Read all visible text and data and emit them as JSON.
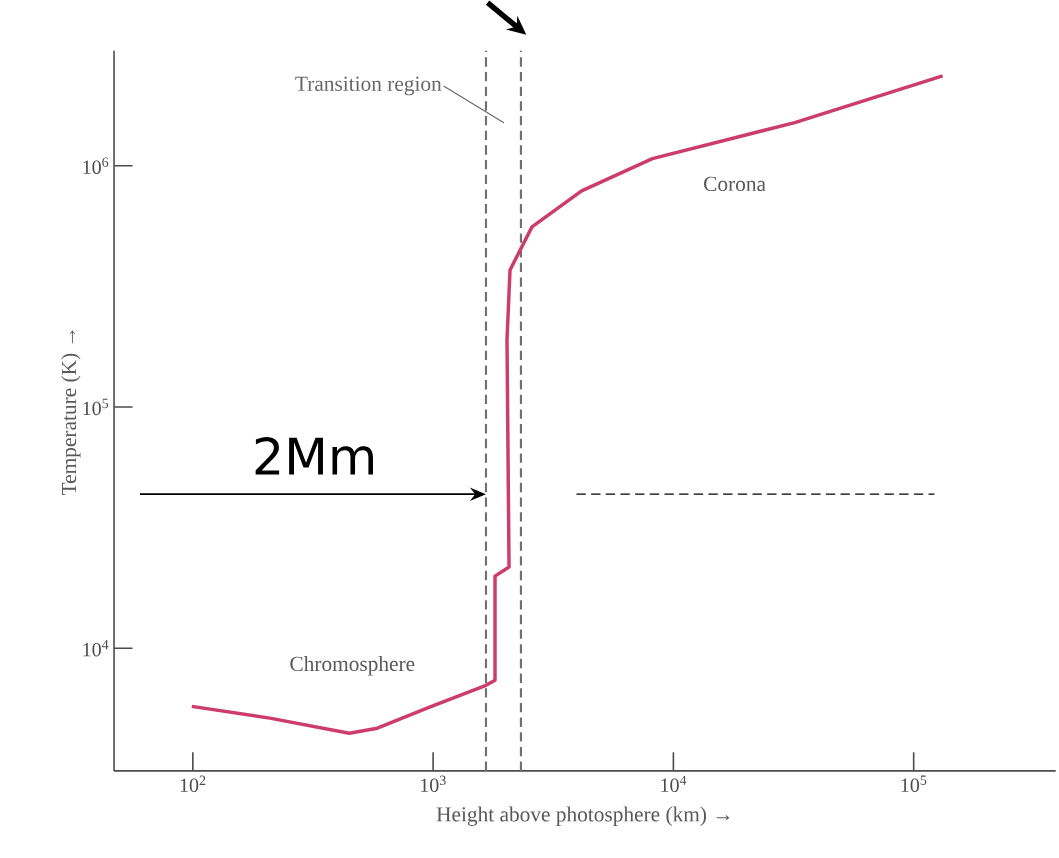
{
  "chart_data": {
    "type": "line",
    "xlabel": "Height above photosphere (km) →",
    "ylabel": "Temperature (K) →",
    "log": "xy",
    "xlim": [
      47,
      390000
    ],
    "ylim": [
      3100,
      3000000
    ],
    "xticks": [
      {
        "value": 100,
        "label": "10$^{2}$"
      },
      {
        "value": 1000,
        "label": "10$^{3}$"
      },
      {
        "value": 10000,
        "label": "10$^{4}$"
      },
      {
        "value": 100000,
        "label": "10$^{5}$"
      }
    ],
    "yticks": [
      {
        "value": 10000,
        "label": "10$^{4}$"
      },
      {
        "value": 100000,
        "label": "10$^{5}$"
      },
      {
        "value": 1000000,
        "label": "10$^{6}$"
      }
    ],
    "series": [
      {
        "color": "#cc3d6b",
        "line_style": "solid",
        "x": [
          99,
          209,
          448,
          586,
          961,
          1660,
          1810,
          1810,
          2070,
          2030,
          2090,
          2580,
          4150,
          8180,
          32000,
          132000
        ],
        "values": [
          5740,
          5130,
          4440,
          4660,
          5690,
          7020,
          7360,
          19900,
          21700,
          190000,
          370000,
          558000,
          787000,
          1070000,
          1510000,
          2360000
        ]
      },
      {
        "color": "#000000",
        "line_style": "dashed",
        "x": [
          3950,
          122000
        ],
        "values": [
          43500,
          43500
        ]
      }
    ],
    "ref_lines": [
      {
        "axis": "x",
        "value": 1660,
        "color": "#707070",
        "line_style": "dashed"
      },
      {
        "axis": "x",
        "value": 2320,
        "color": "#707070",
        "line_style": "dashed"
      }
    ],
    "annotations": [
      "Transition region",
      "Corona",
      "Chromosphere",
      "2Mm"
    ]
  }
}
